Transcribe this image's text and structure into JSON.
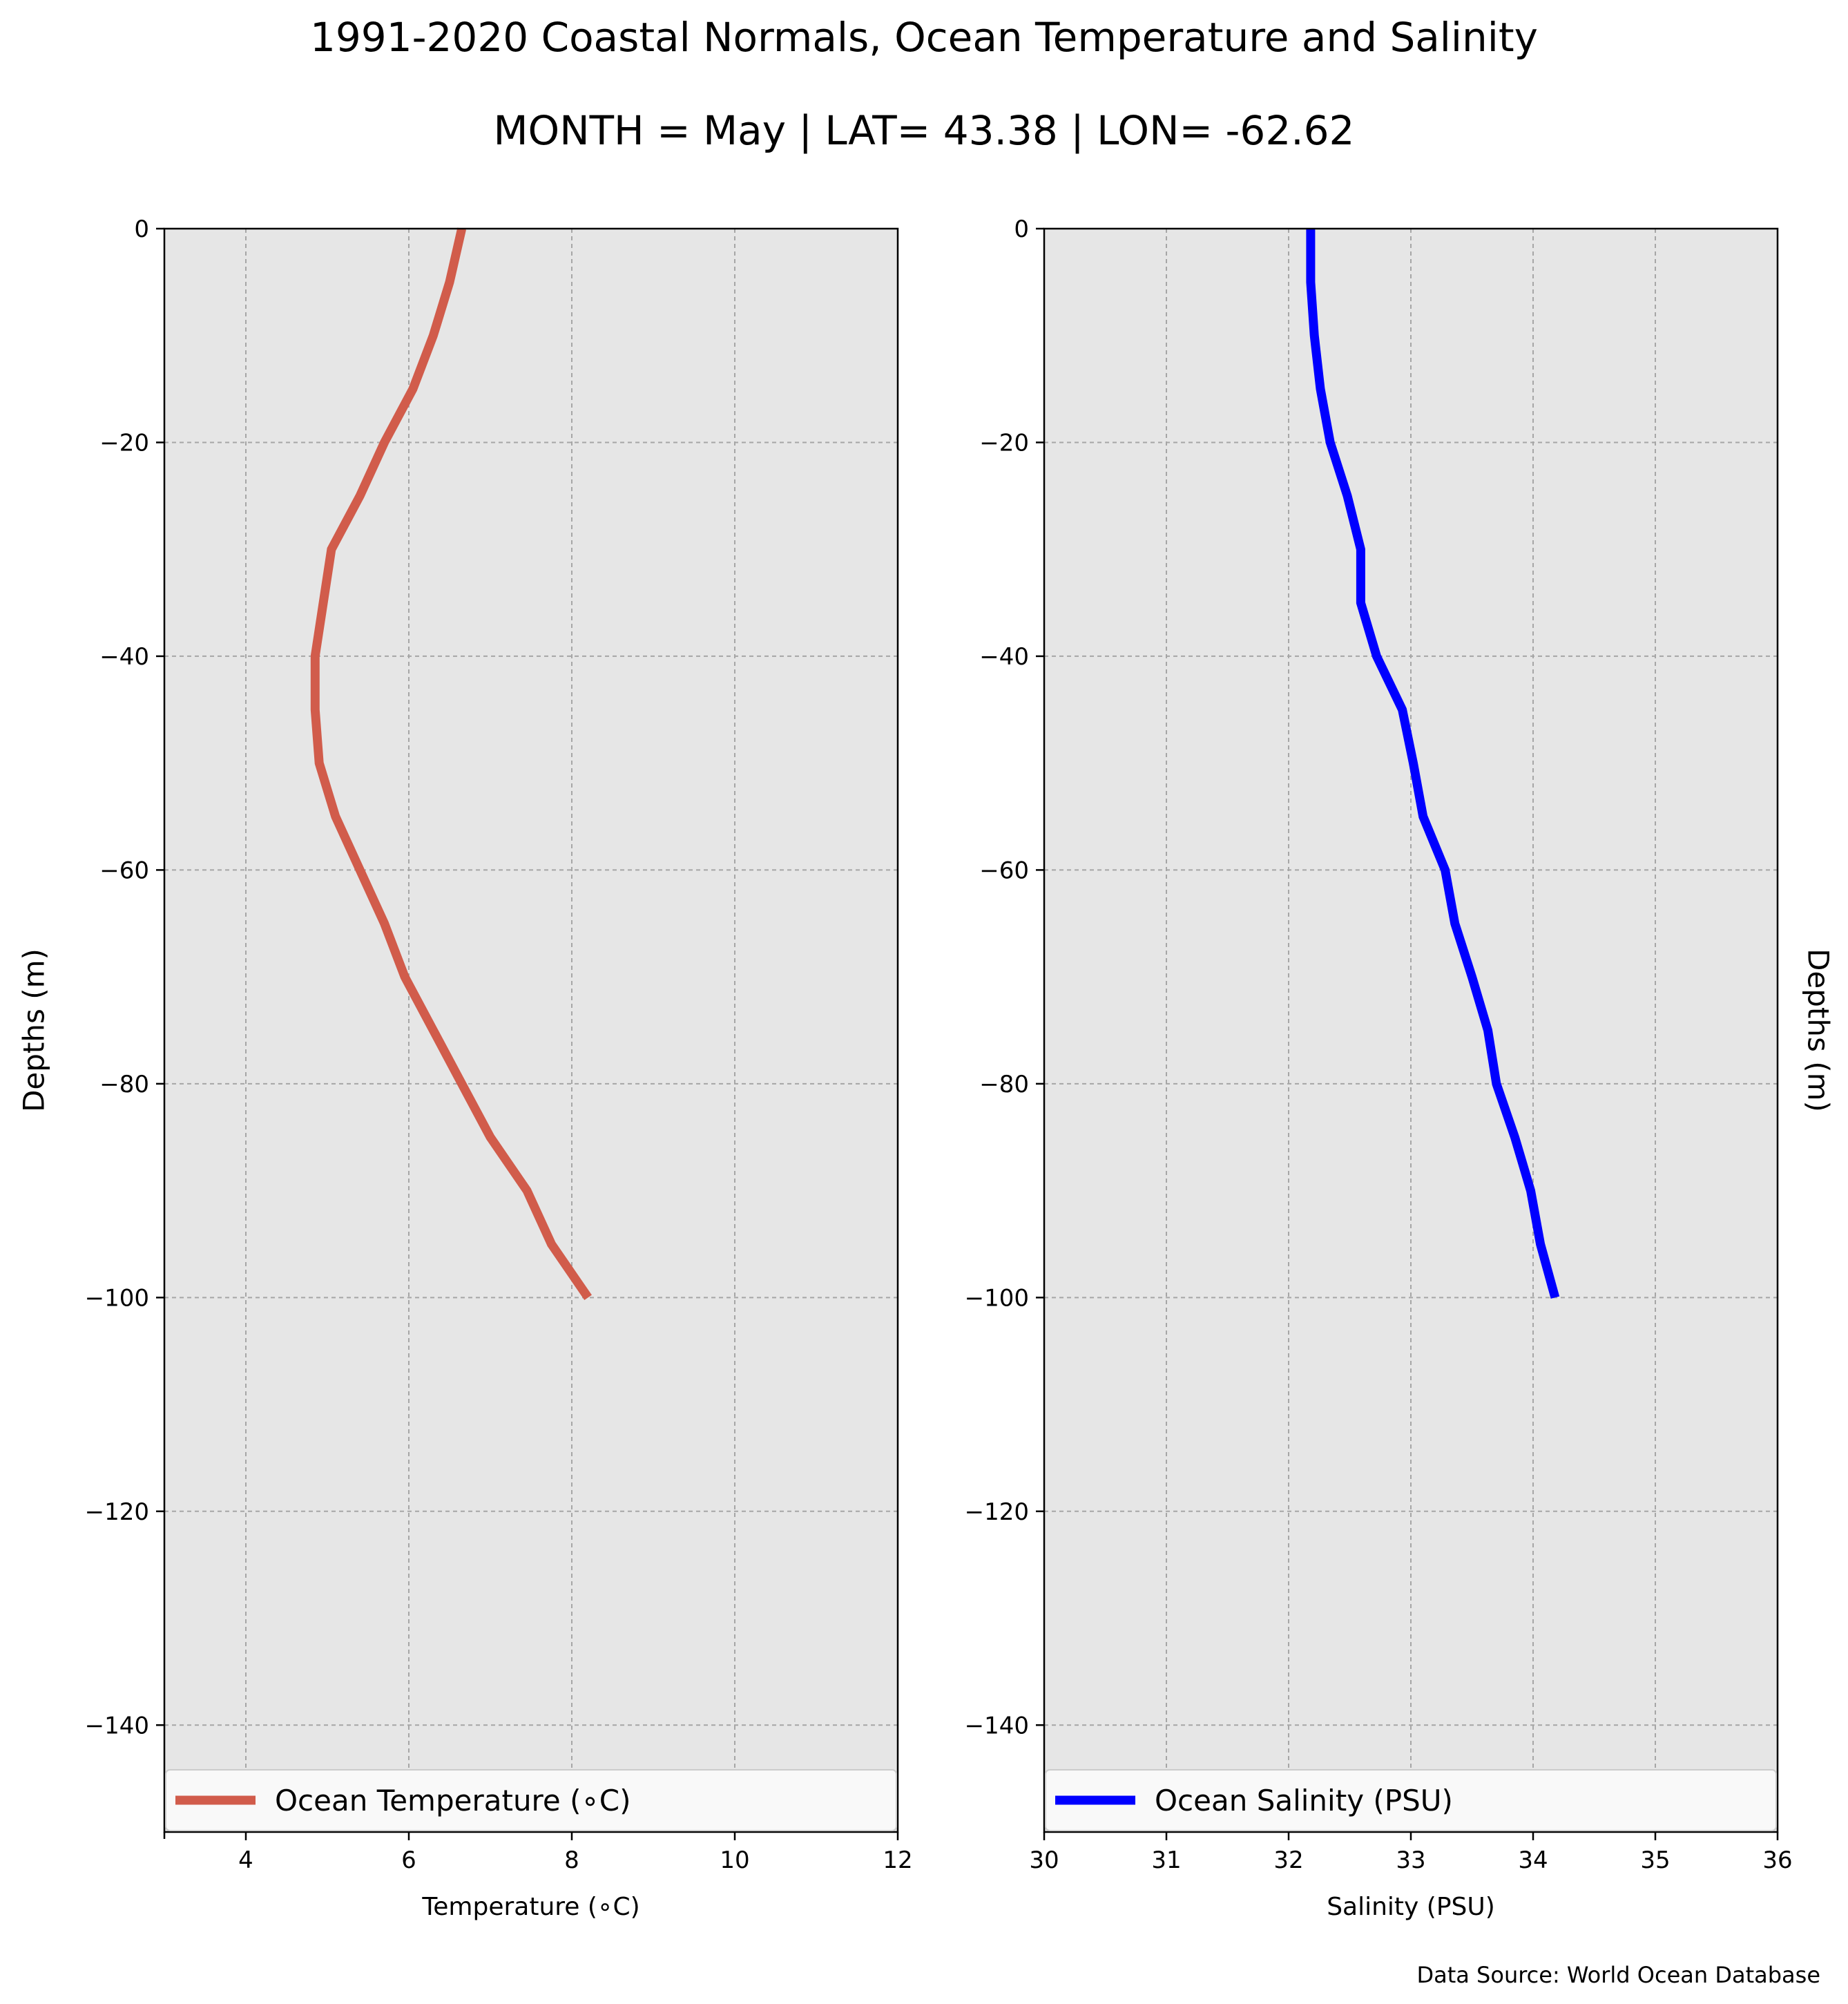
{
  "figure": {
    "title": "1991-2020 Coastal Normals, Ocean Temperature and Salinity",
    "subtitle": "MONTH = May | LAT= 43.38 | LON= -62.62",
    "source": "Data Source: World Ocean Database"
  },
  "chart_data": [
    {
      "type": "line",
      "xlabel": "Temperature (∘C)",
      "ylabel": "Depths (m)",
      "xlim": [
        3,
        12
      ],
      "ylim": [
        -150,
        0
      ],
      "xticks": [
        4,
        6,
        8,
        10,
        12
      ],
      "yticks": [
        0,
        -20,
        -40,
        -60,
        -80,
        -100,
        -120,
        -140
      ],
      "grid": true,
      "background": "#e6e6e6",
      "legend_position": "bottom",
      "series": [
        {
          "name": "Ocean Temperature (∘C)",
          "color": "#d15c4b",
          "x": [
            6.65,
            6.5,
            6.3,
            6.05,
            5.7,
            5.4,
            5.05,
            4.95,
            4.85,
            4.85,
            4.9,
            5.1,
            5.4,
            5.7,
            5.95,
            6.3,
            6.65,
            7.0,
            7.45,
            7.75,
            8.2
          ],
          "y": [
            0,
            -5,
            -10,
            -15,
            -20,
            -25,
            -30,
            -35,
            -40,
            -45,
            -50,
            -55,
            -60,
            -65,
            -70,
            -75,
            -80,
            -85,
            -90,
            -95,
            -100
          ]
        }
      ]
    },
    {
      "type": "line",
      "xlabel": "Salinity (PSU)",
      "ylabel": "Depths (m)",
      "xlim": [
        30,
        36
      ],
      "ylim": [
        -150,
        0
      ],
      "xticks": [
        30,
        31,
        32,
        33,
        34,
        35,
        36
      ],
      "yticks": [
        0,
        -20,
        -40,
        -60,
        -80,
        -100,
        -120,
        -140
      ],
      "grid": true,
      "background": "#e6e6e6",
      "legend_position": "bottom",
      "series": [
        {
          "name": "Ocean Salinity (PSU)",
          "color": "#0000ff",
          "x": [
            32.18,
            32.18,
            32.21,
            32.26,
            32.34,
            32.48,
            32.59,
            32.59,
            32.72,
            32.93,
            33.02,
            33.1,
            33.28,
            33.36,
            33.5,
            33.63,
            33.7,
            33.85,
            33.98,
            34.06,
            34.18
          ],
          "y": [
            0,
            -5,
            -10,
            -15,
            -20,
            -25,
            -30,
            -35,
            -40,
            -45,
            -50,
            -55,
            -60,
            -65,
            -70,
            -75,
            -80,
            -85,
            -90,
            -95,
            -100
          ]
        }
      ]
    }
  ]
}
